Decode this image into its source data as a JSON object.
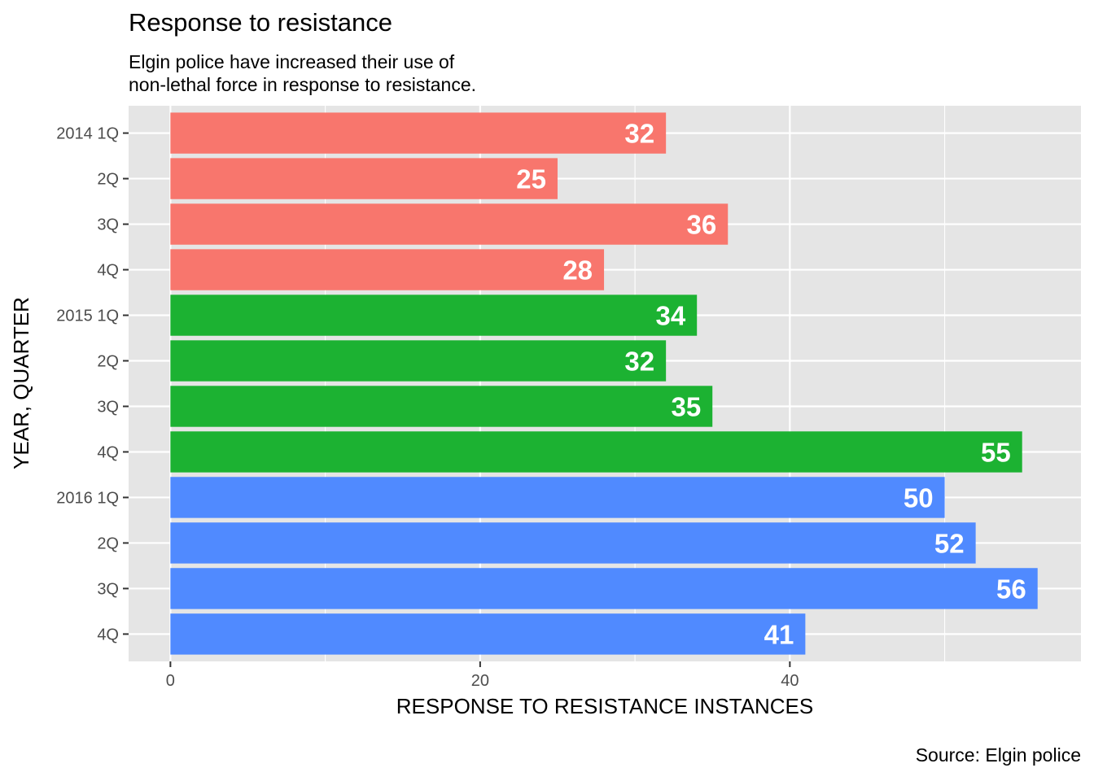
{
  "chart_data": {
    "type": "bar",
    "orientation": "horizontal",
    "title": "Response to resistance",
    "subtitle": [
      "Elgin police have increased their use of",
      "non-lethal force in response to resistance."
    ],
    "caption": "Source: Elgin police",
    "xlabel": "RESPONSE TO RESISTANCE INSTANCES",
    "ylabel": "YEAR, QUARTER",
    "xlim": [
      -2.7,
      58.8
    ],
    "x_ticks": [
      0,
      20,
      40
    ],
    "grid": true,
    "legend": "none",
    "categories": [
      "2014 1Q",
      "2Q",
      "3Q",
      "4Q",
      "2015 1Q",
      "2Q",
      "3Q",
      "4Q",
      "2016 1Q",
      "2Q",
      "3Q",
      "4Q"
    ],
    "values": [
      32,
      25,
      36,
      28,
      34,
      32,
      35,
      55,
      50,
      52,
      56,
      41
    ],
    "groups": [
      "2014",
      "2014",
      "2014",
      "2014",
      "2015",
      "2015",
      "2015",
      "2015",
      "2016",
      "2016",
      "2016",
      "2016"
    ],
    "group_colors": {
      "2014": "#F8766D",
      "2015": "#1CB232",
      "2016": "#508AFF"
    }
  },
  "colors": {
    "panel_background": "#e5e5e5",
    "grid_major": "#ffffff",
    "tick_text": "#4d4d4d"
  }
}
